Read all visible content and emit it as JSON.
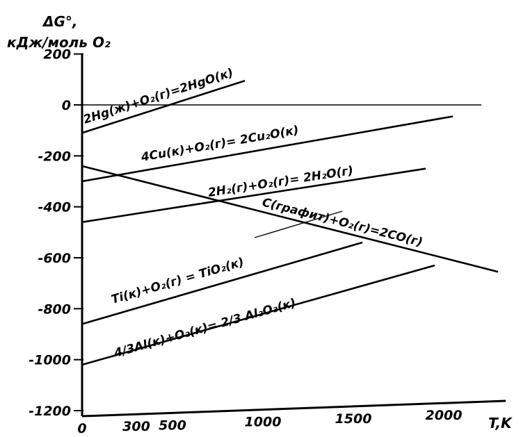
{
  "chart_data": {
    "type": "line",
    "title": "",
    "ylabel_line1": "ΔG°,",
    "ylabel_line2": "кДж/моль O₂",
    "xlabel": "T,K",
    "xlim": [
      0,
      2300
    ],
    "ylim": [
      -1200,
      250
    ],
    "x_ticks": [
      {
        "value": 0,
        "label": "0"
      },
      {
        "value": 300,
        "label": "300"
      },
      {
        "value": 500,
        "label": "500"
      },
      {
        "value": 1000,
        "label": "1000"
      },
      {
        "value": 1500,
        "label": "1500"
      },
      {
        "value": 2000,
        "label": "2000"
      }
    ],
    "y_ticks": [
      {
        "value": 200,
        "label": "200"
      },
      {
        "value": 0,
        "label": "0"
      },
      {
        "value": -200,
        "label": "-200"
      },
      {
        "value": -400,
        "label": "-400"
      },
      {
        "value": -600,
        "label": "-600"
      },
      {
        "value": -800,
        "label": "-800"
      },
      {
        "value": -1000,
        "label": "-1000"
      },
      {
        "value": -1200,
        "label": "-1200"
      }
    ],
    "grid": false,
    "legend": "none",
    "series": [
      {
        "name": "2Hg(ж)+O₂(г)=2HgO(к)",
        "x": [
          0,
          900
        ],
        "y": [
          -110,
          95
        ]
      },
      {
        "name": "4Cu(к)+O₂(г)= 2Cu₂O(к)",
        "x": [
          0,
          2050
        ],
        "y": [
          -300,
          -45
        ]
      },
      {
        "name": "2H₂(г)+O₂(г)= 2H₂O(г)",
        "x": [
          0,
          1900
        ],
        "y": [
          -460,
          -250
        ]
      },
      {
        "name": "C(графит)+O₂(г)=2CO(г)",
        "x": [
          0,
          2300
        ],
        "y": [
          -240,
          -655
        ]
      },
      {
        "name": "Ti(к)+O₂(г) = TiO₂(к)",
        "x": [
          0,
          1550
        ],
        "y": [
          -860,
          -540
        ]
      },
      {
        "name": "4/3Al(к)+O₂(к)= 2/3 Al₂O₃(к)",
        "x": [
          0,
          1950
        ],
        "y": [
          -1020,
          -630
        ]
      }
    ]
  }
}
